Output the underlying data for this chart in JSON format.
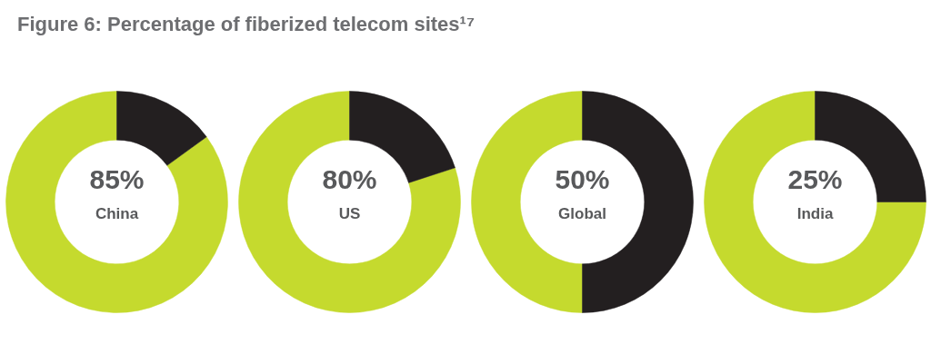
{
  "chart_data": [
    {
      "type": "donut",
      "title": "Figure 6: Percentage of fiberized telecom sites¹⁷",
      "categories": [
        null,
        null
      ],
      "values": [
        85,
        15
      ],
      "colors": [
        "#c5da2e",
        "#231f20"
      ],
      "value_labels": [
        "85%",
        null
      ],
      "annotations": [
        "China"
      ]
    },
    {
      "type": "donut",
      "categories": [
        null,
        null
      ],
      "values": [
        80,
        20
      ],
      "colors": [
        "#c5da2e",
        "#231f20"
      ],
      "value_labels": [
        "80%",
        null
      ],
      "annotations": [
        "US"
      ]
    },
    {
      "type": "donut",
      "categories": [
        null,
        null
      ],
      "values": [
        50,
        50
      ],
      "colors": [
        "#c5da2e",
        "#231f20"
      ],
      "value_labels": [
        "50%",
        null
      ],
      "annotations": [
        "Global"
      ]
    },
    {
      "type": "donut",
      "categories": [
        null,
        null
      ],
      "values": [
        75,
        25
      ],
      "colors": [
        "#c5da2e",
        "#231f20"
      ],
      "value_labels": [
        null,
        "25%"
      ],
      "annotations": [
        "India"
      ]
    }
  ]
}
